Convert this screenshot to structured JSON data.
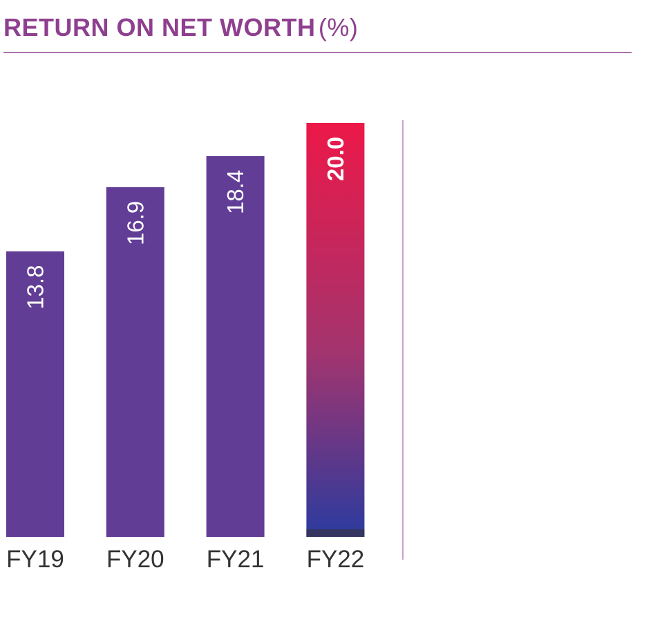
{
  "chart_data": {
    "type": "bar",
    "title": "RETURN ON NET WORTH",
    "title_unit": "(%)",
    "categories": [
      "FY19",
      "FY20",
      "FY21",
      "FY22"
    ],
    "values": [
      13.8,
      16.9,
      18.4,
      20.0
    ],
    "value_labels": [
      "13.8",
      "16.9",
      "18.4",
      "20.0"
    ],
    "xlabel": "",
    "ylabel": "",
    "ylim": [
      0,
      20.0
    ],
    "grid": false,
    "legend": "none",
    "highlight_index": 3,
    "colors": {
      "title": "#8e3f8f",
      "rule": "#a871ab",
      "bar": "#613d96",
      "highlight_top": "#ec1848",
      "highlight_mid": "#a4346e",
      "highlight_bottom": "#2b3b9f",
      "highlight_base": "#343560",
      "divider": "#b186b6",
      "tick_label": "#333333",
      "value_label": "#ffffff"
    }
  }
}
